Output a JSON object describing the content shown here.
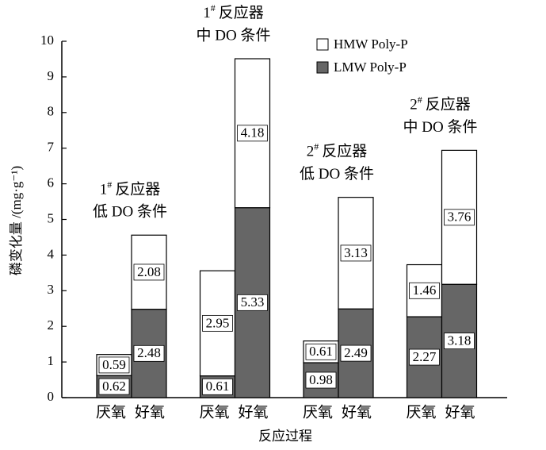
{
  "chart_data": {
    "type": "stacked_bar",
    "y_label": "磷变化量 /(mg·g⁻¹)",
    "x_label": "反应过程",
    "categories": [
      "厌氧",
      "好氧",
      "厌氧",
      "好氧",
      "厌氧",
      "好氧",
      "厌氧",
      "好氧"
    ],
    "groups": [
      {
        "number": "1",
        "sup": "#",
        "name": "反应器",
        "condition": "低 DO 条件"
      },
      {
        "number": "1",
        "sup": "#",
        "name": "反应器",
        "condition": "中 DO 条件"
      },
      {
        "number": "2",
        "sup": "#",
        "name": "反应器",
        "condition": "低 DO 条件"
      },
      {
        "number": "2",
        "sup": "#",
        "name": "反应器",
        "condition": "中 DO 条件"
      }
    ],
    "series": [
      {
        "name": "HMW Poly-P",
        "color": "#ffffff",
        "values": [
          0.59,
          2.08,
          2.95,
          4.18,
          0.61,
          3.13,
          1.46,
          3.76
        ]
      },
      {
        "name": "LMW Poly-P",
        "color": "#666666",
        "values": [
          0.62,
          2.48,
          0.61,
          5.33,
          0.98,
          2.49,
          2.27,
          3.18
        ]
      }
    ],
    "ylim": [
      0,
      10
    ],
    "yticks": [
      0,
      1,
      2,
      3,
      4,
      5,
      6,
      7,
      8,
      9,
      10
    ]
  }
}
